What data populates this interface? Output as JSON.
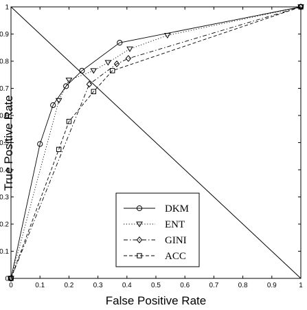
{
  "chart_data": {
    "type": "line",
    "title": "",
    "xlabel": "False Positive Rate",
    "ylabel": "True Positive Rate",
    "xlim": [
      0,
      1
    ],
    "ylim": [
      0,
      1
    ],
    "xticks": [
      "0",
      "0.1",
      "0.2",
      "0.3",
      "0.4",
      "0.5",
      "0.6",
      "0.7",
      "0.8",
      "0.9",
      "1"
    ],
    "yticks": [
      "0",
      "0.1",
      "0.2",
      "0.3",
      "0.4",
      "0.5",
      "0.6",
      "0.7",
      "0.8",
      "0.9",
      "1"
    ],
    "grid": false,
    "legend_position": "bottom-center",
    "reference_line": {
      "x": [
        0,
        1
      ],
      "y": [
        1,
        0
      ]
    },
    "series": [
      {
        "name": "DKM",
        "marker": "circle",
        "dash": "solid",
        "x": [
          0,
          0.1,
          0.145,
          0.19,
          0.245,
          0.375,
          1
        ],
        "y": [
          0,
          0.495,
          0.638,
          0.708,
          0.765,
          0.868,
          1
        ]
      },
      {
        "name": "ENT",
        "marker": "triangle-down",
        "dash": "dotted",
        "x": [
          0,
          0.165,
          0.2,
          0.285,
          0.335,
          0.41,
          0.54,
          1
        ],
        "y": [
          0,
          0.655,
          0.73,
          0.765,
          0.795,
          0.845,
          0.895,
          1
        ]
      },
      {
        "name": "GINI",
        "marker": "diamond",
        "dash": "dashdot",
        "x": [
          0,
          0.27,
          0.365,
          0.405,
          1
        ],
        "y": [
          0,
          0.715,
          0.79,
          0.81,
          1
        ]
      },
      {
        "name": "ACC",
        "marker": "square",
        "dash": "dashed",
        "x": [
          0,
          0.165,
          0.2,
          0.285,
          0.35,
          1
        ],
        "y": [
          0,
          0.475,
          0.578,
          0.688,
          0.765,
          1
        ]
      }
    ]
  }
}
